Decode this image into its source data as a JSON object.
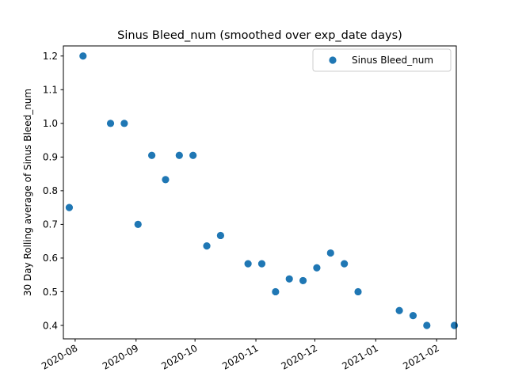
{
  "chart_data": {
    "type": "scatter",
    "title": "Sinus Bleed_num (smoothed over exp_date days)",
    "xlabel": "",
    "ylabel": "30 Day Rolling average of Sinus Bleed_num",
    "x_type": "date",
    "xlim": [
      "2020-07-26",
      "2021-02-11"
    ],
    "ylim": [
      0.36,
      1.23
    ],
    "x_ticks": [
      {
        "value": "2020-08-01",
        "label": "2020-08"
      },
      {
        "value": "2020-09-01",
        "label": "2020-09"
      },
      {
        "value": "2020-10-01",
        "label": "2020-10"
      },
      {
        "value": "2020-11-01",
        "label": "2020-11"
      },
      {
        "value": "2020-12-01",
        "label": "2020-12"
      },
      {
        "value": "2021-01-01",
        "label": "2021-01"
      },
      {
        "value": "2021-02-01",
        "label": "2021-02"
      }
    ],
    "y_ticks": [
      {
        "value": 0.4,
        "label": "0.4"
      },
      {
        "value": 0.5,
        "label": "0.5"
      },
      {
        "value": 0.6,
        "label": "0.6"
      },
      {
        "value": 0.7,
        "label": "0.7"
      },
      {
        "value": 0.8,
        "label": "0.8"
      },
      {
        "value": 0.9,
        "label": "0.9"
      },
      {
        "value": 1.0,
        "label": "1.0"
      },
      {
        "value": 1.1,
        "label": "1.1"
      },
      {
        "value": 1.2,
        "label": "1.2"
      }
    ],
    "grid": false,
    "legend_position": "top-right",
    "series": [
      {
        "name": "Sinus Bleed_num",
        "color": "#1f77b4",
        "marker": "circle",
        "points": [
          {
            "x": "2020-07-29",
            "y": 0.75
          },
          {
            "x": "2020-08-05",
            "y": 1.2
          },
          {
            "x": "2020-08-19",
            "y": 1.0
          },
          {
            "x": "2020-08-26",
            "y": 1.0
          },
          {
            "x": "2020-09-02",
            "y": 0.7
          },
          {
            "x": "2020-09-09",
            "y": 0.905
          },
          {
            "x": "2020-09-16",
            "y": 0.833
          },
          {
            "x": "2020-09-23",
            "y": 0.905
          },
          {
            "x": "2020-09-30",
            "y": 0.905
          },
          {
            "x": "2020-10-07",
            "y": 0.636
          },
          {
            "x": "2020-10-14",
            "y": 0.667
          },
          {
            "x": "2020-10-28",
            "y": 0.583
          },
          {
            "x": "2020-11-04",
            "y": 0.583
          },
          {
            "x": "2020-11-11",
            "y": 0.5
          },
          {
            "x": "2020-11-18",
            "y": 0.538
          },
          {
            "x": "2020-11-25",
            "y": 0.533
          },
          {
            "x": "2020-12-02",
            "y": 0.571
          },
          {
            "x": "2020-12-09",
            "y": 0.615
          },
          {
            "x": "2020-12-16",
            "y": 0.583
          },
          {
            "x": "2020-12-23",
            "y": 0.5
          },
          {
            "x": "2021-01-13",
            "y": 0.444
          },
          {
            "x": "2021-01-20",
            "y": 0.429
          },
          {
            "x": "2021-01-27",
            "y": 0.4
          },
          {
            "x": "2021-02-10",
            "y": 0.4
          }
        ]
      }
    ]
  }
}
